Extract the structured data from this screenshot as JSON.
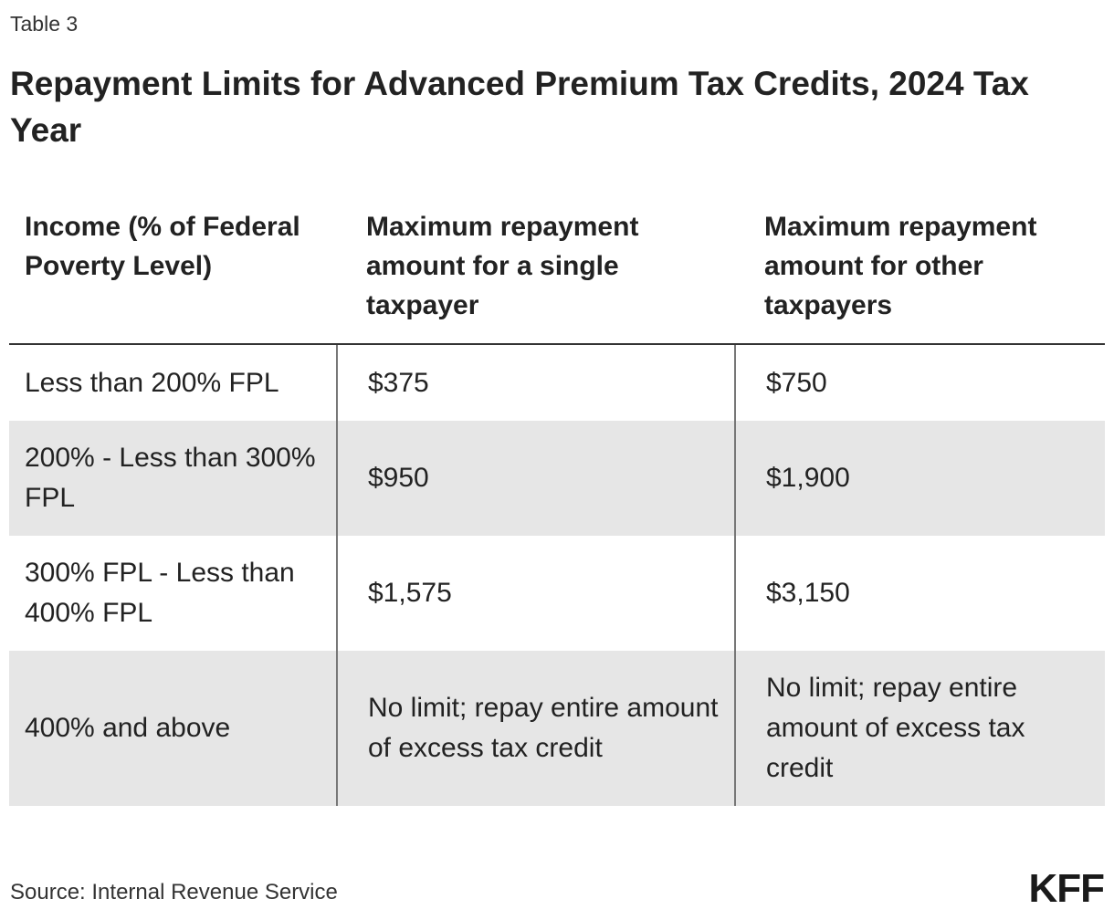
{
  "table_label": "Table 3",
  "title": "Repayment Limits for Advanced Premium Tax Credits, 2024 Tax Year",
  "table": {
    "headers": [
      "Income (% of Federal Poverty Level)",
      "Maximum repayment amount for a single taxpayer",
      "Maximum repayment amount for other taxpayers"
    ],
    "rows": [
      [
        "Less than 200% FPL",
        "$375",
        "$750"
      ],
      [
        "200% - Less than 300% FPL",
        "$950",
        "$1,900"
      ],
      [
        "300% FPL - Less than 400% FPL",
        "$1,575",
        "$3,150"
      ],
      [
        "400% and above",
        "No limit; repay entire amount of excess tax credit",
        "No limit; repay entire amount of excess tax credit"
      ]
    ]
  },
  "source": "Source: Internal Revenue Service",
  "logo": "KFF"
}
